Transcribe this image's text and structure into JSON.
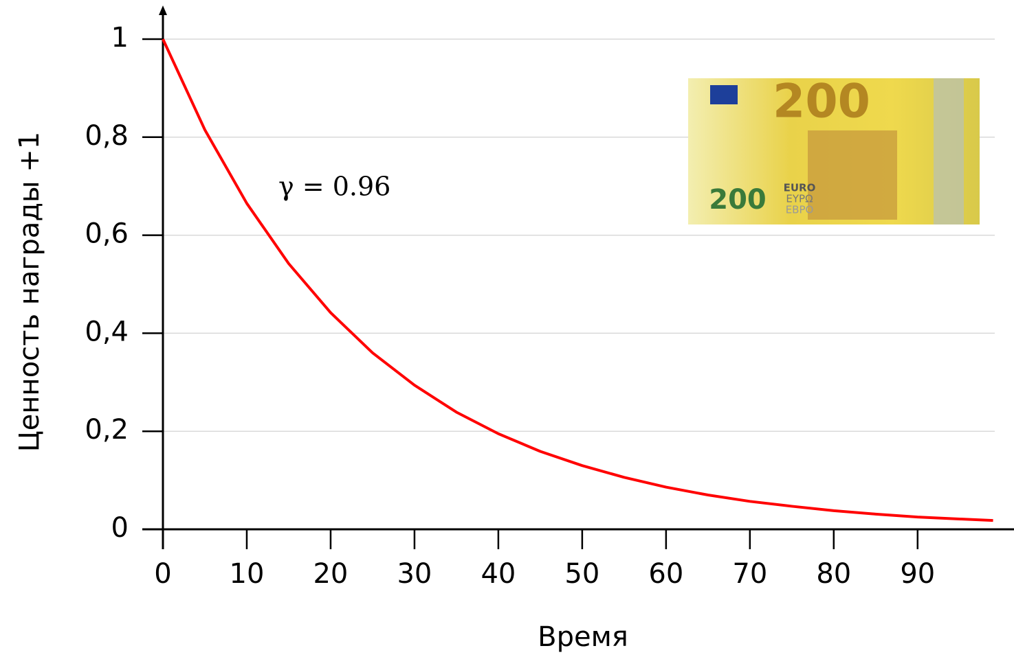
{
  "chart_data": {
    "type": "line",
    "y_label": "Ценность награды +1",
    "x_label": "Время",
    "annotation": "γ = 0.96",
    "banknote_texts": [
      "200",
      "200",
      "EURO",
      "ΕΥΡΩ",
      "ЕВРО"
    ],
    "x": [
      0,
      5,
      10,
      15,
      20,
      25,
      30,
      35,
      40,
      45,
      50,
      55,
      60,
      65,
      70,
      75,
      80,
      85,
      90,
      95,
      99
    ],
    "series": [
      {
        "color": "#ff0000",
        "values": [
          1,
          0.815,
          0.665,
          0.542,
          0.442,
          0.36,
          0.294,
          0.239,
          0.195,
          0.159,
          0.13,
          0.106,
          0.086,
          0.07,
          0.057,
          0.047,
          0.038,
          0.031,
          0.025,
          0.021,
          0.018
        ]
      }
    ],
    "xlim": [
      0,
      99.2
    ],
    "ylim": [
      0,
      1
    ],
    "xticks": [
      0,
      10,
      20,
      30,
      40,
      50,
      60,
      70,
      80,
      90
    ],
    "yticks": [
      0,
      {
        "value": 0.2,
        "label": "0,2"
      },
      {
        "value": 0.4,
        "label": "0,4"
      },
      {
        "value": 0.6,
        "label": "0,6"
      },
      {
        "value": 0.8,
        "label": "0,8"
      },
      1
    ],
    "grid": true
  }
}
